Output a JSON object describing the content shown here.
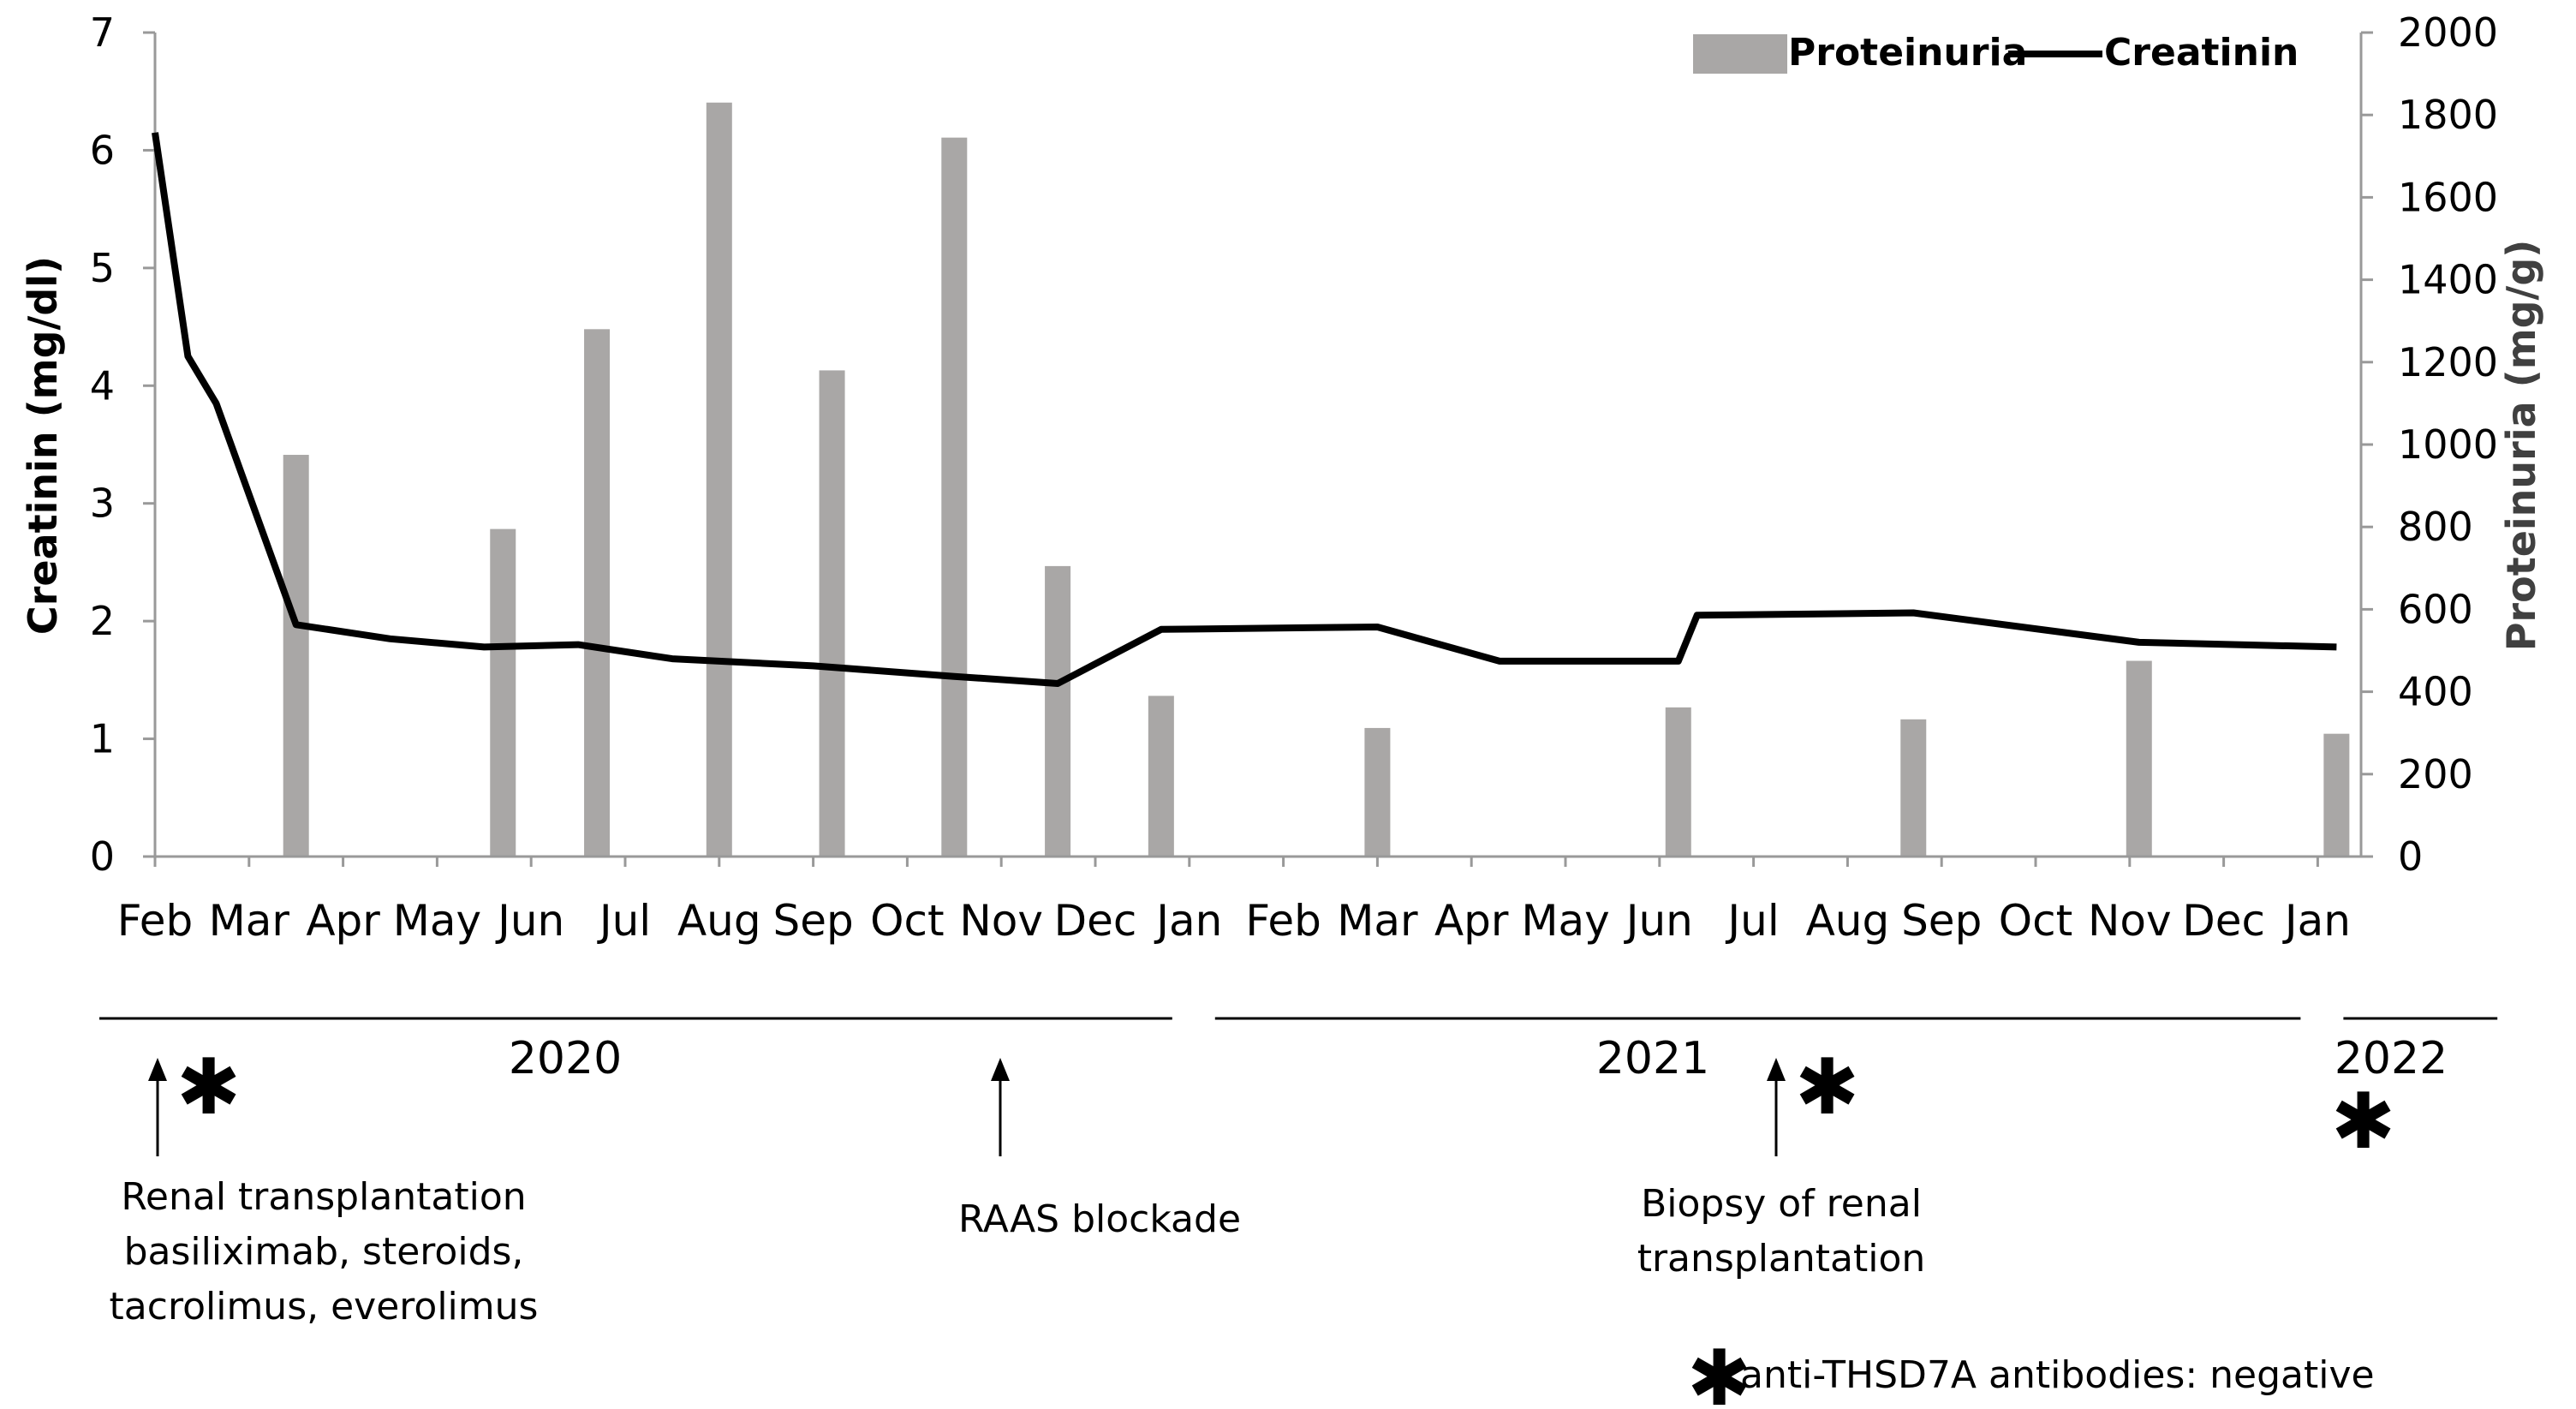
{
  "chart_data": {
    "type": "bar+line",
    "categories": [
      "Feb",
      "Mar",
      "Apr",
      "May",
      "Jun",
      "Jul",
      "Aug",
      "Sep",
      "Oct",
      "Nov",
      "Dec",
      "Jan",
      "Feb",
      "Mar",
      "Apr",
      "May",
      "Jun",
      "Jul",
      "Aug",
      "Sep",
      "Oct",
      "Nov",
      "Dec",
      "Jan"
    ],
    "left_axis": {
      "label": "Creatinin (mg/dl)",
      "ylim": [
        0,
        7
      ],
      "ticks": [
        0,
        1,
        2,
        3,
        4,
        5,
        6,
        7
      ]
    },
    "right_axis": {
      "label": "Proteinuria (mg/g)",
      "ylim": [
        0,
        2000
      ],
      "ticks": [
        0,
        200,
        400,
        600,
        800,
        1000,
        1200,
        1400,
        1600,
        1800,
        2000
      ]
    },
    "legend": {
      "placement": "top-right",
      "entries": [
        "Proteinuria",
        "Creatinin"
      ]
    },
    "grid": false,
    "series": [
      {
        "name": "Proteinuria",
        "kind": "bar",
        "axis": "right",
        "color": "#a9a7a6",
        "points": [
          {
            "x": 1.5,
            "y": 975
          },
          {
            "x": 3.7,
            "y": 795
          },
          {
            "x": 4.7,
            "y": 1280
          },
          {
            "x": 6.0,
            "y": 1830
          },
          {
            "x": 7.2,
            "y": 1180
          },
          {
            "x": 8.5,
            "y": 1745
          },
          {
            "x": 9.6,
            "y": 705
          },
          {
            "x": 10.7,
            "y": 390
          },
          {
            "x": 13.0,
            "y": 312
          },
          {
            "x": 16.2,
            "y": 362
          },
          {
            "x": 18.7,
            "y": 333
          },
          {
            "x": 21.1,
            "y": 475
          },
          {
            "x": 23.2,
            "y": 298
          }
        ]
      },
      {
        "name": "Creatinin",
        "kind": "line",
        "axis": "left",
        "color": "#000000",
        "points": [
          {
            "x": 0.0,
            "y": 6.15
          },
          {
            "x": 0.35,
            "y": 4.25
          },
          {
            "x": 0.65,
            "y": 3.85
          },
          {
            "x": 1.5,
            "y": 1.97
          },
          {
            "x": 2.5,
            "y": 1.85
          },
          {
            "x": 3.5,
            "y": 1.78
          },
          {
            "x": 4.5,
            "y": 1.8
          },
          {
            "x": 5.5,
            "y": 1.68
          },
          {
            "x": 7.0,
            "y": 1.62
          },
          {
            "x": 8.5,
            "y": 1.53
          },
          {
            "x": 9.6,
            "y": 1.47
          },
          {
            "x": 10.7,
            "y": 1.93
          },
          {
            "x": 13.0,
            "y": 1.95
          },
          {
            "x": 14.3,
            "y": 1.66
          },
          {
            "x": 16.2,
            "y": 1.66
          },
          {
            "x": 16.4,
            "y": 2.05
          },
          {
            "x": 18.7,
            "y": 2.07
          },
          {
            "x": 21.1,
            "y": 1.82
          },
          {
            "x": 23.2,
            "y": 1.78
          }
        ]
      }
    ]
  },
  "years": [
    {
      "label": "2020",
      "from": 0,
      "to": 11
    },
    {
      "label": "2021",
      "from": 11,
      "to": 23
    },
    {
      "label": "2022",
      "from": 23,
      "to": 24
    }
  ],
  "events": [
    {
      "x": 0.0,
      "lines": [
        "Renal transplantation",
        "basiliximab, steroids,",
        "tacrolimus, everolimus"
      ],
      "star": true
    },
    {
      "x": 8.98,
      "lines": [
        "RAAS blockade"
      ],
      "star": false
    },
    {
      "x": 16.96,
      "lines": [
        "Biopsy of renal",
        "transplantation"
      ],
      "star": true
    }
  ],
  "extra_star": {
    "x": 23.3
  },
  "footnote": {
    "star": "✱",
    "text": "anti-THSD7A antibodies: negative"
  }
}
